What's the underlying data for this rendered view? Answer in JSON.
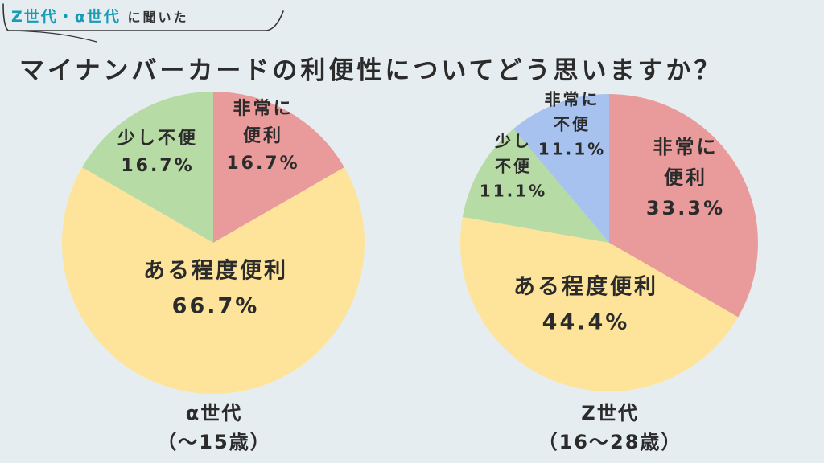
{
  "header": {
    "tag_accent": "Z世代・α世代",
    "tag_rest": "に聞いた",
    "title": "マイナンバーカードの利便性についてどう思いますか？"
  },
  "chart_data": [
    {
      "type": "pie",
      "title": "α世代",
      "subtitle": "（〜15歳）",
      "slices": [
        {
          "label_lines": [
            "非常に",
            "便利"
          ],
          "value": 16.7,
          "value_label": "16.7%",
          "color": "#e89b9a"
        },
        {
          "label_lines": [
            "ある程度便利"
          ],
          "value": 66.7,
          "value_label": "66.7%",
          "color": "#fde49a"
        },
        {
          "label_lines": [
            "少し不便"
          ],
          "value": 16.7,
          "value_label": "16.7%",
          "color": "#b6dba4"
        }
      ]
    },
    {
      "type": "pie",
      "title": "Z世代",
      "subtitle": "（16〜28歳）",
      "slices": [
        {
          "label_lines": [
            "非常に",
            "便利"
          ],
          "value": 33.3,
          "value_label": "33.3%",
          "color": "#e89b9a"
        },
        {
          "label_lines": [
            "ある程度便利"
          ],
          "value": 44.4,
          "value_label": "44.4%",
          "color": "#fde49a"
        },
        {
          "label_lines": [
            "少し",
            "不便"
          ],
          "value": 11.1,
          "value_label": "11.1%",
          "color": "#b6dba4"
        },
        {
          "label_lines": [
            "非常に",
            "不便"
          ],
          "value": 11.1,
          "value_label": "11.1%",
          "color": "#a7c2ef"
        }
      ]
    }
  ]
}
